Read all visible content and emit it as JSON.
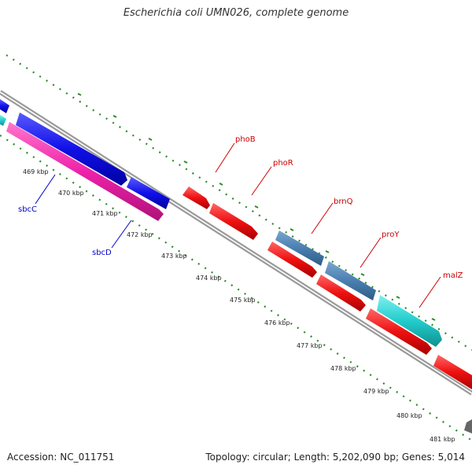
{
  "title": "Escherichia coli UMN026, complete genome",
  "footer": {
    "accession": "Accession: NC_011751",
    "summary": "Topology: circular; Length: 5,202,090 bp; Genes: 5,014"
  },
  "ticks": [
    "469 kbp",
    "470 kbp",
    "471 kbp",
    "472 kbp",
    "473 kbp",
    "474 kbp",
    "475 kbp",
    "476 kbp",
    "477 kbp",
    "478 kbp",
    "479 kbp",
    "480 kbp",
    "481 kbp"
  ],
  "gene_labels": [
    {
      "name": "sbcC",
      "color": "#0000cc"
    },
    {
      "name": "sbcD",
      "color": "#0000cc"
    },
    {
      "name": "phoB",
      "color": "#cc0000"
    },
    {
      "name": "phoR",
      "color": "#cc0000"
    },
    {
      "name": "brnQ",
      "color": "#cc0000"
    },
    {
      "name": "proY",
      "color": "#cc0000"
    },
    {
      "name": "malZ",
      "color": "#cc0000"
    }
  ],
  "colors": {
    "blue": "#1010e8",
    "magenta": "#ee22aa",
    "red": "#ee1111",
    "steelblue": "#4a7fb0",
    "cyan": "#22cccc",
    "backbone": "#999999",
    "tick": "#2a8a2a"
  }
}
